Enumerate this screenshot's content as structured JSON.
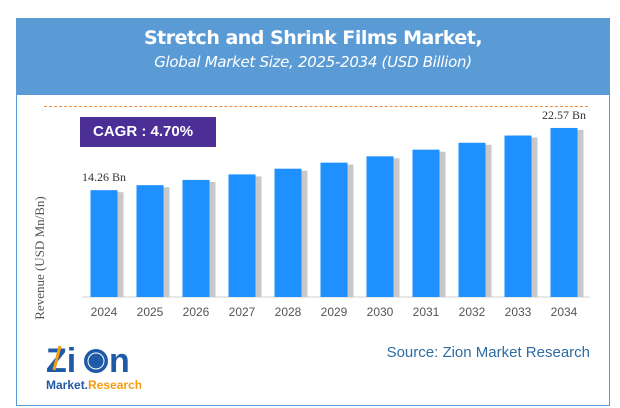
{
  "header": {
    "title": "Stretch and Shrink Films Market,",
    "subtitle": "Global Market Size, 2025-2034 (USD Billion)"
  },
  "cagr": "CAGR :  4.70%",
  "source": "Source: Zion Market Research",
  "logo": {
    "text_top": "Zion",
    "text_bottom": "Market.Research"
  },
  "chart_data": {
    "type": "bar",
    "categories": [
      "2024",
      "2025",
      "2026",
      "2027",
      "2028",
      "2029",
      "2030",
      "2031",
      "2032",
      "2033",
      "2034"
    ],
    "values": [
      14.26,
      14.93,
      15.63,
      16.37,
      17.13,
      17.94,
      18.78,
      19.67,
      20.59,
      21.56,
      22.57
    ],
    "data_labels": {
      "first": "14.26 Bn",
      "last": "22.57 Bn"
    },
    "ylabel": "Revenue (USD Mn/Bn)",
    "xlabel": "",
    "ylim": [
      0,
      25
    ],
    "grid": false,
    "colors": {
      "bar": "#1e90ff",
      "header": "#5b9bd5",
      "cagr": "#4b2f96"
    }
  }
}
